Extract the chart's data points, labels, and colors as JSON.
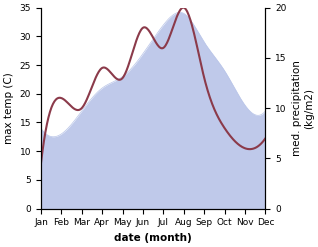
{
  "months": [
    "Jan",
    "Feb",
    "Mar",
    "Apr",
    "May",
    "Jun",
    "Jul",
    "Aug",
    "Sep",
    "Oct",
    "Nov",
    "Dec"
  ],
  "max_temp": [
    14,
    13,
    17,
    21,
    23,
    27,
    32,
    34,
    29,
    24,
    18,
    17
  ],
  "precipitation": [
    4.5,
    11,
    10,
    14,
    13,
    18,
    16,
    20,
    13,
    8,
    6,
    7
  ],
  "temp_fill_color": "#b8c4e8",
  "temp_line_color": "#b8c4e8",
  "precip_color": "#8b3a4a",
  "ylim_temp": [
    0,
    35
  ],
  "ylim_precip": [
    0,
    20
  ],
  "yticks_temp": [
    0,
    5,
    10,
    15,
    20,
    25,
    30,
    35
  ],
  "yticks_precip": [
    0,
    5,
    10,
    15,
    20
  ],
  "xlabel": "date (month)",
  "ylabel_left": "max temp (C)",
  "ylabel_right": "med. precipitation\n(kg/m2)",
  "bg_color": "#ffffff",
  "tick_fontsize": 6.5,
  "label_fontsize": 7.5,
  "ylabel_fontsize": 7.5,
  "line_width": 1.5
}
